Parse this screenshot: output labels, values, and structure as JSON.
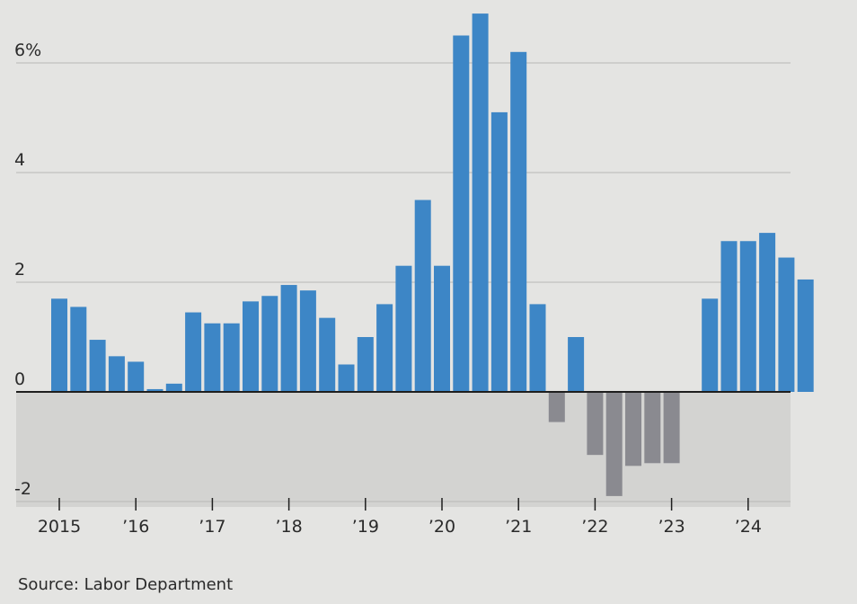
{
  "chart_data": {
    "type": "bar",
    "title": "",
    "xlabel": "",
    "ylabel": "",
    "ylim": [
      -2,
      7
    ],
    "y_ticks": [
      {
        "value": 6,
        "label": "6%"
      },
      {
        "value": 4,
        "label": "4"
      },
      {
        "value": 2,
        "label": "2"
      },
      {
        "value": 0,
        "label": "0"
      },
      {
        "value": -2,
        "label": "-2"
      }
    ],
    "x_tick_labels": [
      "2015",
      "’16",
      "’17",
      "’18",
      "’19",
      "’20",
      "’21",
      "’22",
      "’23",
      "’24"
    ],
    "grid": true,
    "colors": {
      "positive": "#3d86c6",
      "negative": "#8a8a90",
      "negative_band": "#d3d3d1"
    },
    "periods": [
      "2015 Q1",
      "2015 Q2",
      "2015 Q3",
      "2015 Q4",
      "2016 Q1",
      "2016 Q2",
      "2016 Q3",
      "2016 Q4",
      "2017 Q1",
      "2017 Q2",
      "2017 Q3",
      "2017 Q4",
      "2018 Q1",
      "2018 Q2",
      "2018 Q3",
      "2018 Q4",
      "2019 Q1",
      "2019 Q2",
      "2019 Q3",
      "2019 Q4",
      "2020 Q1",
      "2020 Q2",
      "2020 Q3",
      "2020 Q4",
      "2021 Q1",
      "2021 Q2",
      "2021 Q3",
      "2021 Q4",
      "2022 Q1",
      "2022 Q2",
      "2022 Q3",
      "2022 Q4",
      "2023 Q1",
      "2023 Q2",
      "2023 Q3",
      "2023 Q4",
      "2024 Q1",
      "2024 Q2",
      "2024 Q3",
      "2024 Q4"
    ],
    "values": [
      1.7,
      1.55,
      0.95,
      0.65,
      0.55,
      0.05,
      0.15,
      1.45,
      1.25,
      1.25,
      1.65,
      1.75,
      1.95,
      1.85,
      1.35,
      0.5,
      1.0,
      1.6,
      2.3,
      3.5,
      2.3,
      6.5,
      6.9,
      5.1,
      6.2,
      1.6,
      -0.55,
      1.0,
      -1.15,
      -1.9,
      -1.35,
      -1.3,
      -1.3,
      null,
      1.7,
      2.75,
      2.75,
      2.9,
      2.45,
      2.05
    ]
  },
  "source": "Source: Labor Department"
}
